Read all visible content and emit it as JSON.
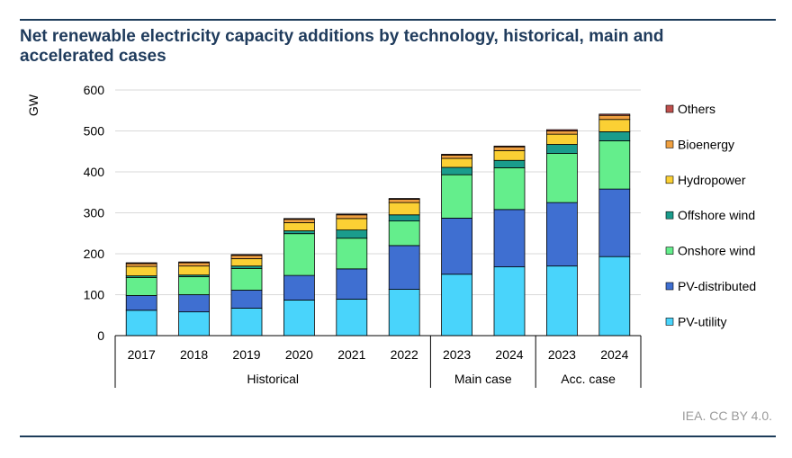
{
  "title": "Net renewable electricity capacity additions by technology, historical, main and accelerated cases",
  "source": "IEA. CC BY 4.0.",
  "chart_data": {
    "type": "bar",
    "stacked": true,
    "ylabel": "GW",
    "ylim": [
      0,
      600
    ],
    "yticks": [
      0,
      100,
      200,
      300,
      400,
      500,
      600
    ],
    "grid": true,
    "legend_position": "right",
    "categories": [
      "2017",
      "2018",
      "2019",
      "2020",
      "2021",
      "2022",
      "2023",
      "2024",
      "2023",
      "2024"
    ],
    "groups": [
      {
        "label": "Historical",
        "count": 6
      },
      {
        "label": "Main case",
        "count": 2
      },
      {
        "label": "Acc. case",
        "count": 2
      }
    ],
    "series": [
      {
        "name": "PV-utility",
        "color": "#49d4fb",
        "values": [
          62,
          58,
          67,
          87,
          89,
          113,
          150,
          168,
          170,
          193
        ]
      },
      {
        "name": "PV-distributed",
        "color": "#3f6fd1",
        "values": [
          36,
          42,
          44,
          60,
          74,
          107,
          137,
          140,
          155,
          165
        ]
      },
      {
        "name": "Onshore wind",
        "color": "#64ee8c",
        "values": [
          44,
          44,
          53,
          102,
          75,
          60,
          106,
          102,
          120,
          118
        ]
      },
      {
        "name": "Offshore wind",
        "color": "#1a9c8c",
        "values": [
          4,
          4,
          6,
          7,
          20,
          15,
          18,
          18,
          22,
          22
        ]
      },
      {
        "name": "Hydropower",
        "color": "#fbd034",
        "values": [
          23,
          22,
          18,
          20,
          28,
          30,
          22,
          24,
          25,
          30
        ]
      },
      {
        "name": "Bioenergy",
        "color": "#f0a040",
        "values": [
          7,
          8,
          8,
          8,
          9,
          8,
          8,
          9,
          8,
          10
        ]
      },
      {
        "name": "Others",
        "color": "#c0504d",
        "values": [
          2,
          2,
          2,
          2,
          2,
          2,
          2,
          2,
          3,
          3
        ]
      }
    ]
  }
}
